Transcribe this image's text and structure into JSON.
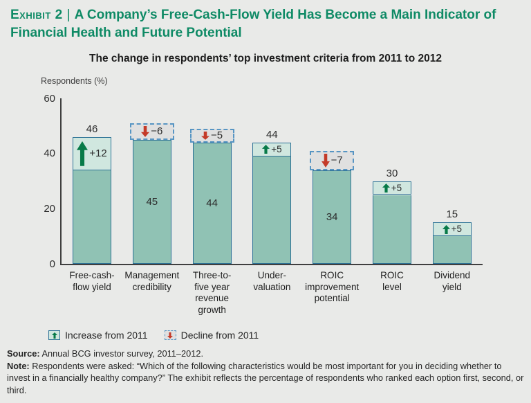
{
  "page": {
    "background": "#e9eae8"
  },
  "header": {
    "exhibit_label": "Exhibit 2",
    "separator": "|",
    "title": "A Company’s Free-Cash-Flow Yield Has Become a Main Indicator of Financial Health and Future Potential"
  },
  "chart_data": {
    "type": "bar",
    "title": "The change in respondents’ top investment criteria from 2011 to 2012",
    "xlabel": "",
    "ylabel": "Respondents (%)",
    "ylim": [
      0,
      60
    ],
    "yticks": [
      60,
      40,
      20,
      0
    ],
    "grid": false,
    "legend_position": "bottom",
    "categories": [
      "Free-cash-flow yield",
      "Management credibility",
      "Three-to-five year revenue growth",
      "Under-valuation",
      "ROIC improvement potential",
      "ROIC level",
      "Dividend yield"
    ],
    "bars": [
      {
        "category": "Free-cash-flow yield",
        "label_lines": [
          "Free-cash-",
          "flow yield"
        ],
        "value_2012": 46,
        "value_label": "46",
        "change": 12,
        "change_label": "+12",
        "direction": "increase",
        "value_label_position": "above"
      },
      {
        "category": "Management credibility",
        "label_lines": [
          "Management",
          "credibility"
        ],
        "value_2012": 45,
        "value_label": "45",
        "change": -6,
        "change_label": "−6",
        "direction": "decline",
        "value_label_position": "inside"
      },
      {
        "category": "Three-to-five year revenue growth",
        "label_lines": [
          "Three-to-",
          "five year",
          "revenue",
          "growth"
        ],
        "value_2012": 44,
        "value_label": "44",
        "change": -5,
        "change_label": "−5",
        "direction": "decline",
        "value_label_position": "inside"
      },
      {
        "category": "Under-valuation",
        "label_lines": [
          "Under-",
          "valuation"
        ],
        "value_2012": 44,
        "value_label": "44",
        "change": 5,
        "change_label": "+5",
        "direction": "increase",
        "value_label_position": "above"
      },
      {
        "category": "ROIC improvement potential",
        "label_lines": [
          "ROIC",
          "improvement",
          "potential"
        ],
        "value_2012": 34,
        "value_label": "34",
        "change": -7,
        "change_label": "−7",
        "direction": "decline",
        "value_label_position": "inside"
      },
      {
        "category": "ROIC level",
        "label_lines": [
          "ROIC",
          "level"
        ],
        "value_2012": 30,
        "value_label": "30",
        "change": 5,
        "change_label": "+5",
        "direction": "increase",
        "value_label_position": "above"
      },
      {
        "category": "Dividend yield",
        "label_lines": [
          "Dividend",
          "yield"
        ],
        "value_2012": 15,
        "value_label": "15",
        "change": 5,
        "change_label": "+5",
        "direction": "increase",
        "value_label_position": "above"
      }
    ]
  },
  "legend": {
    "increase_label": "Increase from 2011",
    "decline_label": "Decline from 2011"
  },
  "footer": {
    "source_label": "Source:",
    "source_text": " Annual BCG investor survey, 2011–2012.",
    "note_label": "Note:",
    "note_text": " Respondents were asked: “Which of the following characteristics would be most important for you in deciding whether to invest in a financially healthy company?” The exhibit reflects the percentage of respondents who ranked each option first, second, or third."
  },
  "colors": {
    "title_green": "#0e8a65",
    "bar_fill": "#90c2b4",
    "bar_fill_light": "#d0e7df",
    "bar_border": "#2d7296",
    "decline_box_fill": "#e0e0e0",
    "decline_box_border": "#5795c3",
    "increase_arrow": "#077a48",
    "decline_arrow": "#c43a28",
    "axis": "#3f3f3f",
    "background": "#e9eae8"
  }
}
